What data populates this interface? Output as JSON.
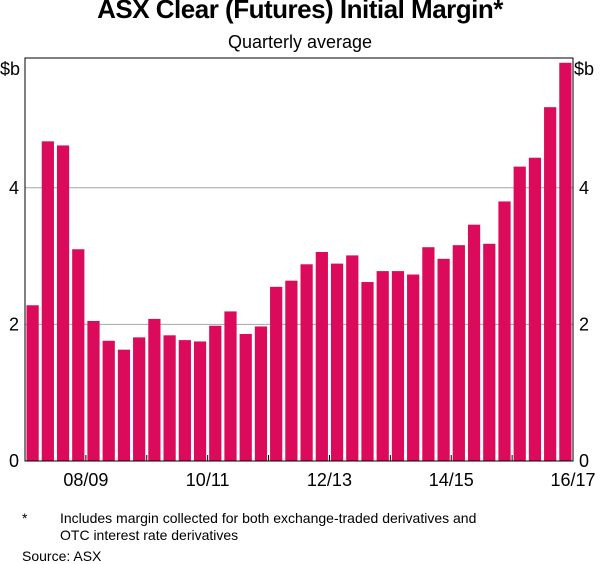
{
  "title": "ASX Clear (Futures) Initial Margin*",
  "subtitle": "Quarterly average",
  "unit_label_left": "$b",
  "unit_label_right": "$b",
  "footnote": {
    "mark": "*",
    "text_line1": "Includes margin collected for both exchange-traded derivatives and",
    "text_line2": "OTC interest rate derivatives"
  },
  "source": "Source:   ASX",
  "bar_color": "#dc0a5a",
  "chart_data": {
    "type": "bar",
    "title": "ASX Clear (Futures) Initial Margin*",
    "subtitle": "Quarterly average",
    "ylabel": "$b",
    "ylim": [
      0,
      5.9
    ],
    "yticks": [
      0,
      2,
      4
    ],
    "grid": true,
    "x_period_labels": [
      "08/09",
      "10/11",
      "12/13",
      "14/15",
      "16/17"
    ],
    "values": [
      2.28,
      4.68,
      4.62,
      3.1,
      2.05,
      1.76,
      1.63,
      1.81,
      2.08,
      1.84,
      1.77,
      1.75,
      1.98,
      2.19,
      1.86,
      1.97,
      2.55,
      2.64,
      2.88,
      3.06,
      2.89,
      3.01,
      2.62,
      2.78,
      2.78,
      2.73,
      3.13,
      2.96,
      3.16,
      3.46,
      3.18,
      3.8,
      4.31,
      4.44,
      5.18,
      5.83
    ]
  }
}
